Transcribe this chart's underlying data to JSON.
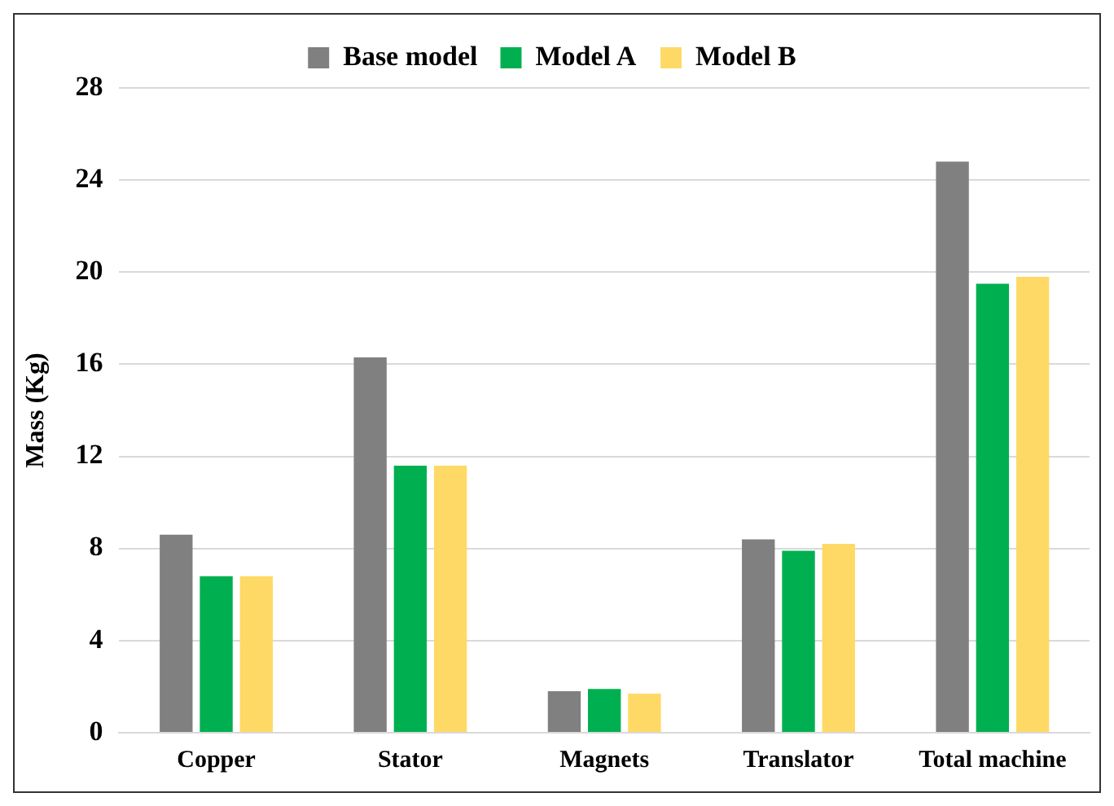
{
  "chart_data": {
    "type": "bar",
    "ylabel": "Mass (Kg)",
    "categories": [
      "Copper",
      "Stator",
      "Magnets",
      "Translator",
      "Total machine"
    ],
    "series": [
      {
        "name": "Base model",
        "color": "#808080",
        "values": [
          8.6,
          16.3,
          1.8,
          8.4,
          24.8
        ]
      },
      {
        "name": "Model A",
        "color": "#00b050",
        "values": [
          6.8,
          11.6,
          1.9,
          7.9,
          19.5
        ]
      },
      {
        "name": "Model B",
        "color": "#ffd966",
        "values": [
          6.8,
          11.6,
          1.7,
          8.2,
          19.8
        ]
      }
    ],
    "ylim": [
      0,
      28
    ],
    "yticks": [
      0,
      4,
      8,
      12,
      16,
      20,
      24,
      28
    ],
    "grid": "y",
    "legend": "top"
  }
}
